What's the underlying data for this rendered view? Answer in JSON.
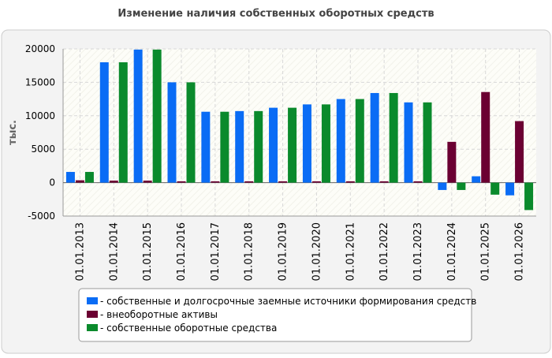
{
  "chart_data": {
    "type": "bar",
    "title": "Изменение наличия собственных оборотных средств",
    "y_label": "тыс.",
    "categories": [
      "01.01.2013",
      "01.01.2014",
      "01.01.2015",
      "01.01.2016",
      "01.01.2017",
      "01.01.2018",
      "01.01.2019",
      "01.01.2020",
      "01.01.2021",
      "01.01.2022",
      "01.01.2023",
      "01.01.2024",
      "01.01.2025",
      "01.01.2026"
    ],
    "series": [
      {
        "name": "- собственные и долгосрочные заемные источники формирования средств",
        "color": "#0a6cf5",
        "values": [
          1600,
          18000,
          19900,
          15000,
          10600,
          10700,
          11200,
          11700,
          12500,
          13400,
          12000,
          -1100,
          950,
          -1900
        ]
      },
      {
        "name": "- внеоборотные активы",
        "color": "#6b0032",
        "values": [
          350,
          300,
          300,
          200,
          200,
          200,
          200,
          200,
          200,
          200,
          200,
          6100,
          13550,
          9200
        ]
      },
      {
        "name": "- собственные оборотные средства",
        "color": "#0a8a2c",
        "values": [
          1600,
          18000,
          19900,
          15000,
          10600,
          10700,
          11200,
          11700,
          12500,
          13400,
          12000,
          -1100,
          -1800,
          -4100
        ]
      }
    ],
    "ylim": [
      -5000,
      20000
    ],
    "yticks": [
      -5000,
      0,
      5000,
      10000,
      15000,
      20000
    ],
    "grid": true
  }
}
